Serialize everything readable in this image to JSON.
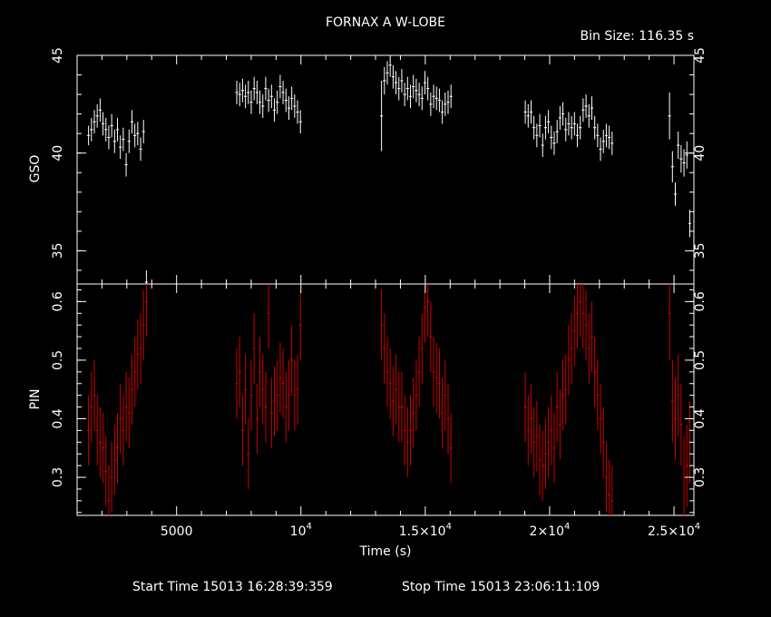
{
  "chart_data": {
    "type": "scatter",
    "title": "FORNAX A W-LOBE",
    "bin_size": "Bin Size: 116.35 s",
    "xlabel": "Time (s)",
    "xlim": [
      1000,
      25800
    ],
    "x_tick_labels": [
      {
        "x": 5000,
        "label": "5000",
        "sup": ""
      },
      {
        "x": 10000,
        "label": "10",
        "sup": "4"
      },
      {
        "x": 15000,
        "label": "1.5×10",
        "sup": "4"
      },
      {
        "x": 20000,
        "label": "2×10",
        "sup": "4"
      },
      {
        "x": 25000,
        "label": "2.5×10",
        "sup": "4"
      }
    ],
    "start_time": "Start Time 15013 16:28:39:359",
    "stop_time": "Stop Time 15013 23:06:11:109",
    "panels": [
      {
        "name": "GSO",
        "ylabel": "GSO",
        "ylim": [
          33.3,
          45
        ],
        "y_ticks": [
          35,
          40,
          45
        ],
        "color": "#ffffff",
        "err_x": 58,
        "segments": [
          {
            "x0": 1460,
            "y": [
              40.9,
              41.2,
              41.6,
              41.9,
              42.2,
              41.5,
              41.2,
              40.8,
              41.4,
              40.6,
              41.2,
              40.3,
              40.7,
              39.4,
              40.6,
              41.6,
              40.9,
              41.0,
              40.2,
              41.1,
              33.4
            ],
            "e": [
              0.5,
              0.6,
              0.6,
              0.6,
              0.6,
              0.6,
              0.6,
              0.6,
              0.6,
              0.6,
              0.6,
              0.6,
              0.6,
              0.6,
              0.6,
              0.6,
              0.6,
              0.6,
              0.6,
              0.6,
              0.6
            ]
          },
          {
            "x0": 7420,
            "y": [
              43.1,
              43.0,
              43.2,
              42.9,
              43.1,
              42.6,
              43.3,
              43.1,
              42.6,
              42.4,
              43.3,
              42.7,
              42.9,
              42.2,
              42.6,
              43.4,
              43.1,
              42.7,
              42.3,
              42.8,
              42.4,
              42.1,
              41.6
            ],
            "e": [
              0.6,
              0.6,
              0.6,
              0.6,
              0.6,
              0.6,
              0.6,
              0.6,
              0.6,
              0.6,
              0.6,
              0.6,
              0.6,
              0.6,
              0.6,
              0.6,
              0.6,
              0.6,
              0.6,
              0.6,
              0.6,
              0.6,
              0.6
            ]
          },
          {
            "x0": 13240,
            "y": [
              41.9,
              43.7,
              44.1,
              44.5,
              43.9,
              43.6,
              43.3,
              43.7,
              43.0,
              43.3,
              42.9,
              43.4,
              43.2,
              43.0,
              42.8,
              43.6,
              43.3,
              42.5,
              42.9,
              42.8,
              42.7,
              42.1,
              42.5,
              42.6,
              42.9
            ],
            "e": [
              1.8,
              0.7,
              0.6,
              0.6,
              0.6,
              0.6,
              0.6,
              0.6,
              0.6,
              0.6,
              0.6,
              0.6,
              0.6,
              0.6,
              0.6,
              0.6,
              0.6,
              0.6,
              0.6,
              0.6,
              0.6,
              0.6,
              0.6,
              0.6,
              0.6
            ]
          },
          {
            "x0": 19020,
            "y": [
              42.1,
              41.9,
              42.1,
              41.3,
              40.9,
              41.4,
              40.4,
              41.3,
              41.6,
              40.8,
              40.5,
              41.1,
              41.8,
              42.0,
              41.2,
              41.5,
              41.3,
              41.5,
              40.9,
              41.3,
              42.2,
              42.4,
              41.9,
              42.3,
              41.3,
              40.9,
              40.2,
              40.6,
              40.9,
              40.8,
              40.5
            ],
            "e": [
              0.6,
              0.6,
              0.6,
              0.6,
              0.6,
              0.6,
              0.6,
              0.6,
              0.6,
              0.6,
              0.6,
              0.6,
              0.6,
              0.6,
              0.6,
              0.6,
              0.6,
              0.6,
              0.6,
              0.6,
              0.6,
              0.6,
              0.6,
              0.6,
              0.6,
              0.6,
              0.6,
              0.6,
              0.6,
              0.6,
              0.6
            ]
          },
          {
            "x0": 24820,
            "y": [
              41.9,
              39.3,
              37.9,
              40.4,
              39.7,
              39.5,
              39.9,
              36.4
            ],
            "e": [
              1.2,
              0.8,
              0.6,
              0.7,
              0.7,
              0.7,
              0.7,
              0.7
            ]
          }
        ]
      },
      {
        "name": "PIN",
        "ylabel": "PIN",
        "ylim": [
          0.235,
          0.63
        ],
        "y_ticks": [
          0.3,
          0.4,
          0.5,
          0.6
        ],
        "color": "#cc0000",
        "err_x": 58,
        "segments": [
          {
            "x0": 1460,
            "y": [
              0.38,
              0.42,
              0.44,
              0.38,
              0.36,
              0.35,
              0.31,
              0.26,
              0.3,
              0.33,
              0.35,
              0.4,
              0.38,
              0.42,
              0.41,
              0.45,
              0.48,
              0.51,
              0.52,
              0.56,
              0.6
            ],
            "e": [
              0.06,
              0.06,
              0.06,
              0.06,
              0.06,
              0.06,
              0.06,
              0.06,
              0.06,
              0.06,
              0.06,
              0.06,
              0.06,
              0.06,
              0.06,
              0.06,
              0.06,
              0.06,
              0.06,
              0.06,
              0.06
            ]
          },
          {
            "x0": 7420,
            "y": [
              0.46,
              0.48,
              0.38,
              0.45,
              0.34,
              0.44,
              0.52,
              0.4,
              0.48,
              0.45,
              0.42,
              0.58,
              0.41,
              0.43,
              0.44,
              0.47,
              0.46,
              0.42,
              0.44,
              0.5,
              0.44,
              0.45,
              0.56
            ],
            "e": [
              0.06,
              0.06,
              0.06,
              0.06,
              0.06,
              0.06,
              0.06,
              0.06,
              0.06,
              0.06,
              0.06,
              0.06,
              0.06,
              0.06,
              0.06,
              0.06,
              0.06,
              0.06,
              0.06,
              0.06,
              0.06,
              0.06,
              0.06
            ]
          },
          {
            "x0": 13240,
            "y": [
              0.56,
              0.52,
              0.48,
              0.46,
              0.43,
              0.45,
              0.42,
              0.42,
              0.38,
              0.36,
              0.38,
              0.41,
              0.44,
              0.48,
              0.52,
              0.59,
              0.6,
              0.54,
              0.48,
              0.47,
              0.46,
              0.41,
              0.44,
              0.4,
              0.35
            ],
            "e": [
              0.06,
              0.06,
              0.06,
              0.06,
              0.06,
              0.06,
              0.06,
              0.06,
              0.06,
              0.06,
              0.06,
              0.06,
              0.06,
              0.06,
              0.06,
              0.06,
              0.06,
              0.06,
              0.06,
              0.06,
              0.06,
              0.06,
              0.06,
              0.06,
              0.06
            ]
          },
          {
            "x0": 19020,
            "y": [
              0.42,
              0.38,
              0.4,
              0.36,
              0.37,
              0.33,
              0.32,
              0.34,
              0.36,
              0.38,
              0.35,
              0.42,
              0.39,
              0.44,
              0.45,
              0.5,
              0.52,
              0.55,
              0.58,
              0.6,
              0.58,
              0.56,
              0.52,
              0.54,
              0.48,
              0.44,
              0.4,
              0.36,
              0.3,
              0.27,
              0.26
            ],
            "e": [
              0.06,
              0.06,
              0.06,
              0.06,
              0.06,
              0.06,
              0.06,
              0.06,
              0.06,
              0.06,
              0.06,
              0.06,
              0.06,
              0.06,
              0.06,
              0.06,
              0.06,
              0.06,
              0.06,
              0.06,
              0.06,
              0.06,
              0.06,
              0.06,
              0.06,
              0.06,
              0.06,
              0.06,
              0.06,
              0.06,
              0.06
            ]
          },
          {
            "x0": 24820,
            "y": [
              0.58,
              0.43,
              0.4,
              0.44,
              0.39,
              0.3,
              0.32,
              0.36
            ],
            "e": [
              0.08,
              0.07,
              0.07,
              0.07,
              0.07,
              0.07,
              0.07,
              0.07
            ]
          }
        ]
      }
    ],
    "grid": false,
    "legend": "none"
  }
}
